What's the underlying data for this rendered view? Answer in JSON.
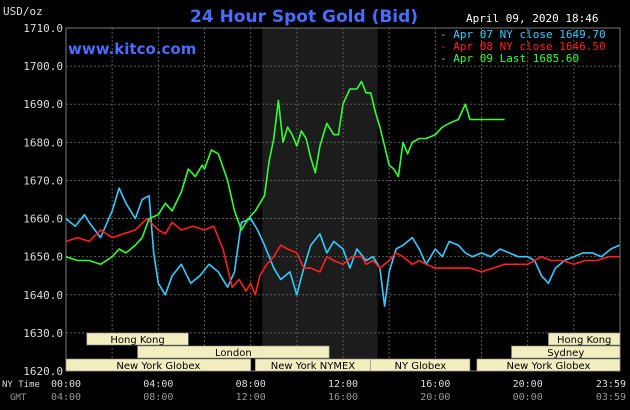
{
  "header": {
    "title": "24 Hour Spot Gold (Bid)",
    "unit": "USD/oz",
    "date_time": "April 09, 2020 18:46",
    "site": "www.kitco.com"
  },
  "legend": [
    {
      "text": "Apr 07 NY close 1649.70",
      "color": "#33ccff"
    },
    {
      "text": "Apr 08 NY close 1646.50",
      "color": "#ff2020"
    },
    {
      "text": "Apr 09 Last 1685.60",
      "color": "#33ff33"
    }
  ],
  "sessions": {
    "row1": [
      {
        "label": "Hong Kong",
        "start": 0.9,
        "end": 5.3
      },
      {
        "label": "Hong Kong",
        "start": 20.9,
        "end": 24.0
      }
    ],
    "row2": [
      {
        "label": "London",
        "start": 3.1,
        "end": 11.4
      },
      {
        "label": "Sydney",
        "start": 19.3,
        "end": 24.0
      }
    ],
    "row3": [
      {
        "label": "New York Globex",
        "start": 0.0,
        "end": 8.0
      },
      {
        "label": "New York NYMEX",
        "start": 8.2,
        "end": 13.2
      },
      {
        "label": "NY Globex",
        "start": 13.2,
        "end": 17.5
      },
      {
        "label": "New York Globex",
        "start": 17.8,
        "end": 24.0
      }
    ]
  },
  "time_axis": {
    "ny_label": "NY Time",
    "gmt_label": "GMT",
    "ny_ticks": [
      "00:00",
      "04:00",
      "08:00",
      "12:00",
      "16:00",
      "20:00",
      "23:59"
    ],
    "gmt_ticks": [
      "04:00",
      "08:00",
      "12:00",
      "16:00",
      "20:00",
      "00:00",
      "03:59"
    ]
  },
  "colors": {
    "background": "#000000",
    "grid": "#5a5a5a",
    "highlight": "#1c1c1c",
    "title": "#4a6cff",
    "axis_text": "#dddddd",
    "session_fill": "#f2eec0",
    "session_text": "#000000"
  },
  "chart_data": {
    "type": "line",
    "title": "24 Hour Spot Gold (Bid)",
    "ylabel": "USD/oz",
    "ylim": [
      1620,
      1710
    ],
    "xlim_hours": [
      0,
      24
    ],
    "y_ticks": [
      "1710.0",
      "1700.0",
      "1690.0",
      "1680.0",
      "1670.0",
      "1660.0",
      "1650.0",
      "1640.0",
      "1630.0",
      "1620.0"
    ],
    "grid": true,
    "legend_position": "top-right",
    "highlight_hours": [
      8.5,
      13.5
    ],
    "series": [
      {
        "name": "Apr 07 NY close 1649.70",
        "color": "#33ccff",
        "x": [
          0.0,
          0.4,
          0.8,
          1.0,
          1.5,
          2.0,
          2.3,
          2.6,
          3.0,
          3.3,
          3.6,
          3.8,
          4.0,
          4.3,
          4.6,
          5.0,
          5.4,
          5.8,
          6.2,
          6.6,
          7.0,
          7.3,
          7.6,
          8.0,
          8.3,
          8.6,
          9.0,
          9.3,
          9.7,
          10.0,
          10.3,
          10.6,
          11.0,
          11.3,
          11.6,
          12.0,
          12.3,
          12.6,
          13.0,
          13.3,
          13.6,
          13.8,
          14.0,
          14.3,
          14.6,
          15.0,
          15.3,
          15.6,
          16.0,
          16.3,
          16.6,
          17.0,
          17.3,
          17.6,
          18.0,
          18.4,
          18.8,
          19.2,
          19.6,
          20.0,
          20.3,
          20.6,
          20.9,
          21.2,
          21.6,
          22.0,
          22.4,
          22.8,
          23.2,
          23.6,
          23.98
        ],
        "y": [
          1660,
          1658,
          1661,
          1659,
          1655,
          1662,
          1668,
          1664,
          1660,
          1665,
          1666,
          1651,
          1643,
          1640,
          1645,
          1648,
          1643,
          1645,
          1648,
          1646,
          1642,
          1646,
          1659,
          1660,
          1657,
          1653,
          1647,
          1644,
          1646,
          1640,
          1647,
          1653,
          1656,
          1651,
          1654,
          1652,
          1647,
          1652,
          1649,
          1650,
          1647,
          1637,
          1646,
          1652,
          1653,
          1655,
          1652,
          1648,
          1652,
          1650,
          1654,
          1653,
          1651,
          1650,
          1651,
          1650,
          1652,
          1651,
          1650,
          1650,
          1649,
          1645,
          1643,
          1647,
          1649,
          1650,
          1651,
          1651,
          1650,
          1652,
          1653
        ]
      },
      {
        "name": "Apr 08 NY close 1646.50",
        "color": "#ff2020",
        "x": [
          0.0,
          0.5,
          1.0,
          1.5,
          2.0,
          2.5,
          3.0,
          3.5,
          4.0,
          4.3,
          4.6,
          5.0,
          5.5,
          6.0,
          6.4,
          6.8,
          7.0,
          7.2,
          7.5,
          7.8,
          8.0,
          8.2,
          8.4,
          8.7,
          9.0,
          9.3,
          9.6,
          10.0,
          10.3,
          10.6,
          11.0,
          11.3,
          11.6,
          12.0,
          12.4,
          12.8,
          13.0,
          13.3,
          13.6,
          14.0,
          14.3,
          14.6,
          15.0,
          15.3,
          15.6,
          16.0,
          16.5,
          17.0,
          17.5,
          18.0,
          18.5,
          19.0,
          19.5,
          20.0,
          20.3,
          20.6,
          21.0,
          21.5,
          22.0,
          22.5,
          23.0,
          23.5,
          23.98
        ],
        "y": [
          1654,
          1655,
          1654,
          1657,
          1655,
          1656,
          1657,
          1660,
          1657,
          1656,
          1659,
          1657,
          1658,
          1657,
          1658,
          1652,
          1647,
          1642,
          1644,
          1641,
          1643,
          1640,
          1645,
          1648,
          1650,
          1653,
          1652,
          1651,
          1647,
          1647,
          1646,
          1650,
          1649,
          1648,
          1650,
          1650,
          1648,
          1649,
          1647,
          1649,
          1651,
          1650,
          1648,
          1649,
          1648,
          1647,
          1647,
          1647,
          1647,
          1646,
          1647,
          1648,
          1648,
          1648,
          1649,
          1650,
          1649,
          1649,
          1648,
          1649,
          1649,
          1650,
          1650
        ]
      },
      {
        "name": "Apr 09 Last 1685.60",
        "color": "#33ff33",
        "x": [
          0.0,
          0.5,
          1.0,
          1.5,
          2.0,
          2.3,
          2.6,
          3.0,
          3.3,
          3.6,
          4.0,
          4.3,
          4.6,
          5.0,
          5.3,
          5.6,
          5.9,
          6.0,
          6.3,
          6.6,
          7.0,
          7.3,
          7.6,
          7.9,
          8.2,
          8.6,
          8.8,
          9.0,
          9.2,
          9.4,
          9.6,
          9.8,
          10.0,
          10.2,
          10.4,
          10.6,
          10.8,
          11.0,
          11.3,
          11.6,
          11.8,
          12.0,
          12.3,
          12.6,
          12.8,
          13.0,
          13.2,
          13.4,
          13.6,
          13.8,
          14.0,
          14.2,
          14.4,
          14.6,
          14.8,
          15.0,
          15.3,
          15.6,
          16.0,
          16.3,
          16.6,
          17.0,
          17.3,
          17.5,
          17.7,
          18.0,
          18.4,
          18.8,
          19.0
        ],
        "y": [
          1650,
          1649,
          1649,
          1648,
          1650,
          1652,
          1651,
          1653,
          1655,
          1660,
          1661,
          1664,
          1662,
          1667,
          1673,
          1671,
          1674,
          1673,
          1678,
          1677,
          1670,
          1662,
          1657,
          1660,
          1662,
          1666,
          1675,
          1681,
          1691,
          1680,
          1684,
          1682,
          1679,
          1683,
          1681,
          1676,
          1672,
          1679,
          1685,
          1682,
          1682,
          1690,
          1694,
          1694,
          1696,
          1693,
          1693,
          1688,
          1684,
          1679,
          1674,
          1673,
          1671,
          1680,
          1677,
          1680,
          1681,
          1681,
          1682,
          1684,
          1685,
          1686,
          1690,
          1686,
          1686,
          1686,
          1686,
          1686,
          1686
        ]
      }
    ]
  }
}
